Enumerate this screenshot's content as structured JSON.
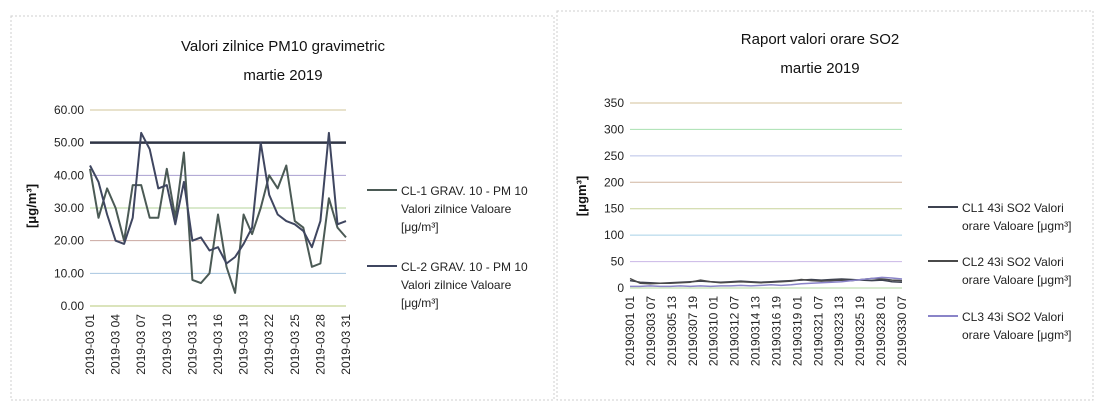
{
  "chart_data": [
    {
      "type": "line",
      "title": "Valori zilnice PM10 gravimetric",
      "subtitle": "martie 2019",
      "ylabel": "[μg/m³]",
      "xlabel": "",
      "ylim": [
        0,
        60
      ],
      "yticks": [
        "0.00",
        "10.00",
        "20.00",
        "30.00",
        "40.00",
        "50.00",
        "60.00"
      ],
      "x_tick_labels": [
        "2019-03 01",
        "2019-03 04",
        "2019-03 07",
        "2019-03 10",
        "2019-03 13",
        "2019-03 16",
        "2019-03 19",
        "2019-03 22",
        "2019-03 25",
        "2019-03 28",
        "2019-03 31"
      ],
      "grid": true,
      "legend_position": "right",
      "limit_value": 50,
      "limit_color": "#2f3445",
      "series": [
        {
          "name": "CL-1 GRAV. 10 - PM 10 Valori zilnice Valoare [μg/m³]",
          "color": "#4b5a55",
          "values": [
            42,
            27,
            36,
            30,
            20,
            37,
            37,
            27,
            27,
            42,
            27,
            47,
            8,
            7,
            10,
            28,
            12,
            4,
            28,
            22,
            30,
            40,
            36,
            43,
            26,
            24,
            12,
            13,
            33,
            24,
            21
          ]
        },
        {
          "name": "CL-2 GRAV. 10 - PM 10 Valori zilnice Valoare [μg/m³]",
          "color": "#3f4660",
          "values": [
            43,
            38,
            28,
            20,
            19,
            27,
            53,
            48,
            36,
            37,
            25,
            38,
            20,
            21,
            17,
            18,
            13,
            15,
            19,
            24,
            50,
            34,
            28,
            26,
            25,
            23,
            18,
            26,
            53,
            25,
            26
          ]
        }
      ]
    },
    {
      "type": "line",
      "title": "Raport valori orare SO2",
      "subtitle": "martie 2019",
      "ylabel": "[μgm³]",
      "xlabel": "",
      "ylim": [
        0,
        350
      ],
      "yticks": [
        "0",
        "50",
        "100",
        "150",
        "200",
        "250",
        "300",
        "350"
      ],
      "x_tick_labels": [
        "20190301 01",
        "20190303 07",
        "20190305 13",
        "20190307 19",
        "20190310 01",
        "20190312 07",
        "20190314 13",
        "20190316 19",
        "20190319 01",
        "20190321 07",
        "20190323 13",
        "20190325 19",
        "20190328 01",
        "20190330 07"
      ],
      "grid": true,
      "legend_position": "right",
      "series": [
        {
          "name": "CL1 43i SO2 Valori orare Valoare [μgm³]",
          "color": "#3d4250",
          "values": [
            14,
            11,
            10,
            9,
            10,
            11,
            12,
            13,
            12,
            11,
            12,
            13,
            12,
            11,
            12,
            13,
            14,
            15,
            16,
            15,
            16,
            17,
            16,
            15,
            14,
            15,
            12,
            11
          ]
        },
        {
          "name": "CL2 43i SO2 Valori orare Valoare [μgm³]",
          "color": "#4a4a4a",
          "values": [
            18,
            9,
            8,
            9,
            9,
            10,
            11,
            15,
            12,
            10,
            11,
            12,
            11,
            10,
            11,
            12,
            13,
            16,
            14,
            13,
            14,
            15,
            14,
            16,
            18,
            17,
            15,
            14
          ]
        },
        {
          "name": "CL3 43i SO2 Valori orare Valoare [μgm³]",
          "color": "#8a84c8",
          "values": [
            3,
            3,
            4,
            3,
            3,
            4,
            3,
            4,
            3,
            4,
            4,
            5,
            4,
            5,
            6,
            5,
            6,
            8,
            9,
            10,
            11,
            12,
            14,
            16,
            18,
            20,
            19,
            17
          ]
        }
      ]
    }
  ]
}
